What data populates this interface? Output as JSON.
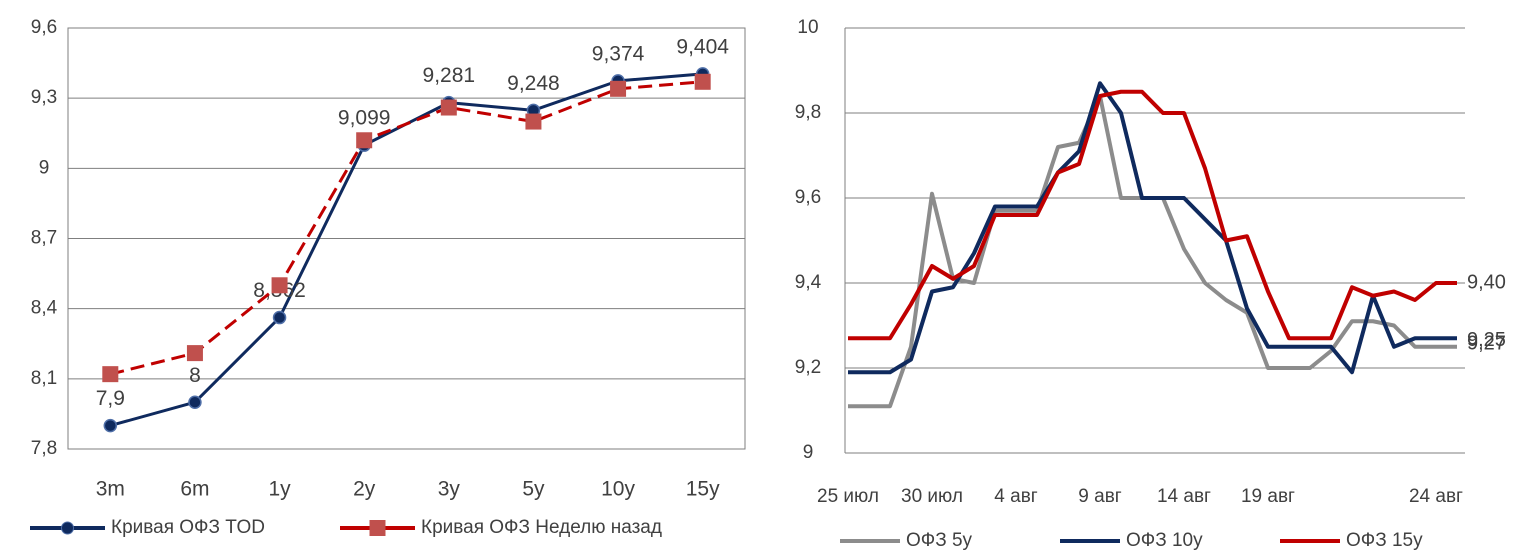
{
  "chart_data": [
    {
      "type": "line",
      "categories": [
        "3m",
        "6m",
        "1y",
        "2y",
        "3y",
        "5y",
        "10y",
        "15y"
      ],
      "series": [
        {
          "name": "Кривая ОФЗ TOD",
          "color": "#0f2a5e",
          "marker": "circle",
          "dash": false,
          "values": [
            7.9,
            8,
            8.362,
            9.099,
            9.281,
            9.248,
            9.374,
            9.404
          ],
          "value_labels": [
            "7,9",
            "8",
            "8,362",
            "9,099",
            "9,281",
            "9,248",
            "9,374",
            "9,404"
          ]
        },
        {
          "name": "Кривая ОФЗ Неделю назад",
          "color": "#c00000",
          "marker": "square",
          "dash": true,
          "values": [
            8.12,
            8.21,
            8.5,
            9.12,
            9.26,
            9.2,
            9.34,
            9.37
          ]
        }
      ],
      "ylim": [
        7.8,
        9.6
      ],
      "yticks": [
        {
          "value": 7.8,
          "label": "7,8"
        },
        {
          "value": 8.1,
          "label": "8,1"
        },
        {
          "value": 8.4,
          "label": "8,4"
        },
        {
          "value": 8.7,
          "label": "8,7"
        },
        9,
        {
          "value": 9.3,
          "label": "9,3"
        },
        {
          "value": 9.6,
          "label": "9,6"
        }
      ],
      "grid": true,
      "legend": "bottom"
    },
    {
      "type": "line",
      "categories": [
        "25 июл",
        null,
        null,
        null,
        "30 июл",
        null,
        null,
        null,
        "4 авг",
        null,
        null,
        null,
        "9 авг",
        null,
        null,
        null,
        "14 авг",
        null,
        null,
        null,
        "19 авг",
        null,
        null,
        null,
        null,
        null,
        null,
        null,
        "24 авг",
        null
      ],
      "series": [
        {
          "name": "ОФЗ 5y",
          "color": "#8c8c8c",
          "marker": "none",
          "dash": false,
          "values": [
            9.11,
            9.11,
            9.11,
            9.25,
            9.61,
            9.41,
            9.4,
            9.57,
            9.57,
            9.57,
            9.72,
            9.73,
            9.84,
            9.6,
            9.6,
            9.6,
            9.48,
            9.4,
            9.36,
            9.33,
            9.2,
            9.2,
            9.2,
            9.24,
            9.31,
            9.31,
            9.3,
            9.25,
            9.25,
            9.25
          ],
          "value_labels": [
            null,
            null,
            null,
            null,
            null,
            null,
            null,
            null,
            null,
            null,
            null,
            null,
            null,
            null,
            null,
            null,
            null,
            null,
            null,
            null,
            null,
            null,
            null,
            null,
            null,
            null,
            null,
            null,
            null,
            "9,25"
          ]
        },
        {
          "name": "ОФЗ 10y",
          "color": "#0f2a5e",
          "marker": "none",
          "dash": false,
          "values": [
            9.19,
            9.19,
            9.19,
            9.22,
            9.38,
            9.39,
            9.47,
            9.58,
            9.58,
            9.58,
            9.66,
            9.71,
            9.87,
            9.8,
            9.6,
            9.6,
            9.6,
            9.55,
            9.5,
            9.34,
            9.25,
            9.25,
            9.25,
            9.25,
            9.19,
            9.37,
            9.25,
            9.27,
            9.27,
            9.27
          ],
          "value_labels": [
            null,
            null,
            null,
            null,
            null,
            null,
            null,
            null,
            null,
            null,
            null,
            null,
            null,
            null,
            null,
            null,
            null,
            null,
            null,
            null,
            null,
            null,
            null,
            null,
            null,
            null,
            null,
            null,
            null,
            "9,27"
          ]
        },
        {
          "name": "ОФЗ 15y",
          "color": "#c00000",
          "marker": "none",
          "dash": false,
          "values": [
            9.27,
            9.27,
            9.27,
            9.35,
            9.44,
            9.41,
            9.44,
            9.56,
            9.56,
            9.56,
            9.66,
            9.68,
            9.84,
            9.85,
            9.85,
            9.8,
            9.8,
            9.67,
            9.5,
            9.51,
            9.38,
            9.27,
            9.27,
            9.27,
            9.39,
            9.37,
            9.38,
            9.36,
            9.4,
            9.4
          ],
          "value_labels": [
            null,
            null,
            null,
            null,
            null,
            null,
            null,
            null,
            null,
            null,
            null,
            null,
            null,
            null,
            null,
            null,
            null,
            null,
            null,
            null,
            null,
            null,
            null,
            null,
            null,
            null,
            null,
            null,
            null,
            "9,40"
          ]
        }
      ],
      "ylim": [
        9,
        10
      ],
      "yticks": [
        9,
        {
          "value": 9.2,
          "label": "9,2"
        },
        {
          "value": 9.4,
          "label": "9,4"
        },
        {
          "value": 9.6,
          "label": "9,6"
        },
        {
          "value": 9.8,
          "label": "9,8"
        },
        10
      ],
      "grid": true,
      "legend": "bottom"
    }
  ]
}
